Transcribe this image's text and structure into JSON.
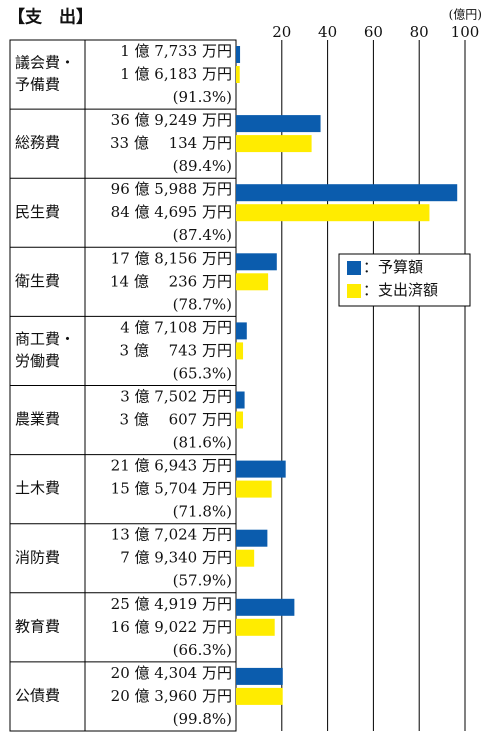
{
  "chart_data": {
    "type": "bar",
    "title": "【支　出】",
    "unit": "(億円)",
    "categories": [
      [
        "議会費・",
        "予備費"
      ],
      [
        "総務費"
      ],
      [
        "民生費"
      ],
      [
        "衛生費"
      ],
      [
        "商工費・",
        "労働費"
      ],
      [
        "農業費"
      ],
      [
        "土木費"
      ],
      [
        "消防費"
      ],
      [
        "教育費"
      ],
      [
        "公債費"
      ]
    ],
    "series": [
      {
        "name": "：予算額",
        "color": "#0b5cad",
        "values": [
          1.7733,
          36.9249,
          96.5988,
          17.8156,
          4.7108,
          3.7502,
          21.6943,
          13.7024,
          25.4919,
          20.4304
        ],
        "value_labels": [
          "1 億 7,733 万円",
          "36 億 9,249 万円",
          "96 億 5,988 万円",
          "17 億 8,156 万円",
          "4 億 7,108 万円",
          "3 億 7,502 万円",
          "21 億 6,943 万円",
          "13 億 7,024 万円",
          "25 億 4,919 万円",
          "20 億 4,304 万円"
        ]
      },
      {
        "name": "：支出済額",
        "color": "#ffec00",
        "values": [
          1.6183,
          33.0134,
          84.4695,
          14.0236,
          3.0743,
          3.0607,
          15.5704,
          7.934,
          16.9022,
          20.396
        ],
        "value_labels": [
          "1 億 6,183 万円",
          "33 億　 134 万円",
          "84 億 4,695 万円",
          "14 億　 236 万円",
          "3 億　 743 万円",
          "3 億　 607 万円",
          "15 億 5,704 万円",
          "7 億 9,340 万円",
          "16 億 9,022 万円",
          "20 億 3,960 万円"
        ]
      }
    ],
    "rates": [
      "(91.3%)",
      "(89.4%)",
      "(87.4%)",
      "(78.7%)",
      "(65.3%)",
      "(81.6%)",
      "(71.8%)",
      "(57.9%)",
      "(66.3%)",
      "(99.8%)"
    ],
    "xlim": [
      0,
      100
    ],
    "xticks": [
      20,
      40,
      60,
      80,
      100
    ],
    "grid": true
  }
}
